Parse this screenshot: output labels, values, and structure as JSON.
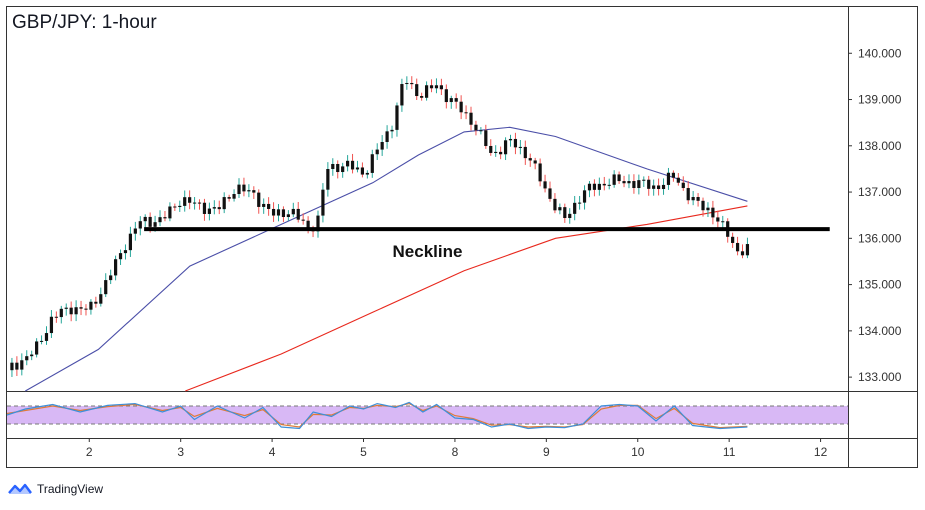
{
  "colors": {
    "up_candle": "#26a69a",
    "down_candle": "#ef5350",
    "candle_body": "#111111",
    "ma_fast": "#4b4fa8",
    "ma_slow": "#e8281d",
    "neckline": "#000000",
    "oscillator_band": "#d8b8f5",
    "osc_k": "#3d8fd9",
    "osc_d": "#e07a38",
    "axis_text": "#333333",
    "border": "#333333"
  },
  "chart_data": {
    "type": "candlestick",
    "title": "GBP/JPY: 1-hour",
    "x_tick_labels": [
      "2",
      "3",
      "4",
      "5",
      "8",
      "9",
      "10",
      "11",
      "12"
    ],
    "y_tick_labels": [
      "133.000",
      "134.000",
      "135.000",
      "136.000",
      "137.000",
      "138.000",
      "139.000",
      "140.000"
    ],
    "y_ticks": [
      133,
      134,
      135,
      136,
      137,
      138,
      139,
      140
    ],
    "ylim": [
      132.7,
      141.0
    ],
    "x_tick_positions": [
      0.9,
      1.9,
      2.9,
      3.9,
      4.9,
      5.9,
      6.9,
      7.9,
      8.9
    ],
    "xlim": [
      0.0,
      9.2
    ],
    "price_path": [
      [
        0.0,
        133.15
      ],
      [
        0.3,
        133.55
      ],
      [
        0.5,
        134.3
      ],
      [
        0.7,
        134.5
      ],
      [
        0.9,
        134.45
      ],
      [
        1.1,
        135.1
      ],
      [
        1.3,
        135.9
      ],
      [
        1.45,
        136.35
      ],
      [
        1.7,
        136.4
      ],
      [
        1.9,
        136.85
      ],
      [
        2.1,
        136.7
      ],
      [
        2.3,
        136.6
      ],
      [
        2.5,
        137.1
      ],
      [
        2.7,
        136.95
      ],
      [
        2.9,
        136.5
      ],
      [
        3.1,
        136.6
      ],
      [
        3.3,
        136.2
      ],
      [
        3.4,
        136.4
      ],
      [
        3.5,
        137.5
      ],
      [
        3.7,
        137.6
      ],
      [
        3.9,
        137.4
      ],
      [
        4.05,
        137.9
      ],
      [
        4.2,
        138.4
      ],
      [
        4.35,
        139.45
      ],
      [
        4.5,
        139.1
      ],
      [
        4.7,
        139.3
      ],
      [
        4.9,
        138.9
      ],
      [
        5.1,
        138.5
      ],
      [
        5.3,
        137.8
      ],
      [
        5.5,
        138.1
      ],
      [
        5.7,
        137.8
      ],
      [
        5.9,
        137.0
      ],
      [
        6.1,
        136.4
      ],
      [
        6.3,
        137.0
      ],
      [
        6.6,
        137.25
      ],
      [
        6.9,
        137.2
      ],
      [
        7.1,
        137.1
      ],
      [
        7.3,
        137.35
      ],
      [
        7.5,
        136.8
      ],
      [
        7.7,
        136.6
      ],
      [
        7.8,
        136.3
      ],
      [
        7.9,
        136.05
      ],
      [
        8.0,
        135.7
      ],
      [
        8.1,
        135.75
      ]
    ],
    "neckline": {
      "label": "Neckline",
      "value": 136.2,
      "x_range": [
        1.5,
        9.0
      ]
    },
    "moving_averages": [
      {
        "points": [
          [
            0.2,
            132.7
          ],
          [
            1.0,
            133.6
          ],
          [
            2.0,
            135.4
          ],
          [
            3.0,
            136.3
          ],
          [
            4.0,
            137.2
          ],
          [
            4.5,
            137.8
          ],
          [
            5.0,
            138.3
          ],
          [
            5.5,
            138.4
          ],
          [
            6.0,
            138.2
          ],
          [
            7.0,
            137.5
          ],
          [
            8.1,
            136.8
          ]
        ]
      },
      {
        "points": [
          [
            1.95,
            132.7
          ],
          [
            3.0,
            133.5
          ],
          [
            4.0,
            134.4
          ],
          [
            5.0,
            135.3
          ],
          [
            6.0,
            136.0
          ],
          [
            7.0,
            136.3
          ],
          [
            8.1,
            136.7
          ]
        ]
      }
    ],
    "oscillator": {
      "levels": [
        80,
        20
      ],
      "k": [
        [
          0.0,
          50
        ],
        [
          0.2,
          70
        ],
        [
          0.5,
          85
        ],
        [
          0.8,
          60
        ],
        [
          1.1,
          82
        ],
        [
          1.4,
          88
        ],
        [
          1.7,
          60
        ],
        [
          1.9,
          80
        ],
        [
          2.05,
          35
        ],
        [
          2.3,
          80
        ],
        [
          2.6,
          40
        ],
        [
          2.8,
          75
        ],
        [
          3.0,
          10
        ],
        [
          3.2,
          5
        ],
        [
          3.35,
          60
        ],
        [
          3.55,
          45
        ],
        [
          3.75,
          80
        ],
        [
          3.9,
          70
        ],
        [
          4.05,
          88
        ],
        [
          4.25,
          75
        ],
        [
          4.4,
          92
        ],
        [
          4.55,
          60
        ],
        [
          4.7,
          85
        ],
        [
          4.9,
          40
        ],
        [
          5.1,
          35
        ],
        [
          5.3,
          10
        ],
        [
          5.5,
          20
        ],
        [
          5.7,
          5
        ],
        [
          5.9,
          10
        ],
        [
          6.1,
          8
        ],
        [
          6.3,
          20
        ],
        [
          6.5,
          80
        ],
        [
          6.7,
          85
        ],
        [
          6.9,
          80
        ],
        [
          7.1,
          30
        ],
        [
          7.3,
          80
        ],
        [
          7.5,
          15
        ],
        [
          7.8,
          5
        ],
        [
          8.1,
          10
        ]
      ],
      "d": [
        [
          0.0,
          55
        ],
        [
          0.2,
          65
        ],
        [
          0.5,
          80
        ],
        [
          0.8,
          65
        ],
        [
          1.1,
          78
        ],
        [
          1.4,
          85
        ],
        [
          1.7,
          65
        ],
        [
          1.9,
          75
        ],
        [
          2.05,
          45
        ],
        [
          2.3,
          72
        ],
        [
          2.6,
          48
        ],
        [
          2.8,
          68
        ],
        [
          3.0,
          18
        ],
        [
          3.2,
          10
        ],
        [
          3.35,
          52
        ],
        [
          3.55,
          50
        ],
        [
          3.75,
          75
        ],
        [
          3.9,
          72
        ],
        [
          4.05,
          82
        ],
        [
          4.25,
          78
        ],
        [
          4.4,
          88
        ],
        [
          4.55,
          65
        ],
        [
          4.7,
          80
        ],
        [
          4.9,
          48
        ],
        [
          5.1,
          38
        ],
        [
          5.3,
          16
        ],
        [
          5.5,
          18
        ],
        [
          5.7,
          10
        ],
        [
          5.9,
          12
        ],
        [
          6.1,
          10
        ],
        [
          6.3,
          18
        ],
        [
          6.5,
          70
        ],
        [
          6.7,
          82
        ],
        [
          6.9,
          82
        ],
        [
          7.1,
          38
        ],
        [
          7.3,
          72
        ],
        [
          7.5,
          22
        ],
        [
          7.8,
          8
        ],
        [
          8.1,
          12
        ]
      ]
    }
  },
  "branding": {
    "name": "TradingView"
  }
}
